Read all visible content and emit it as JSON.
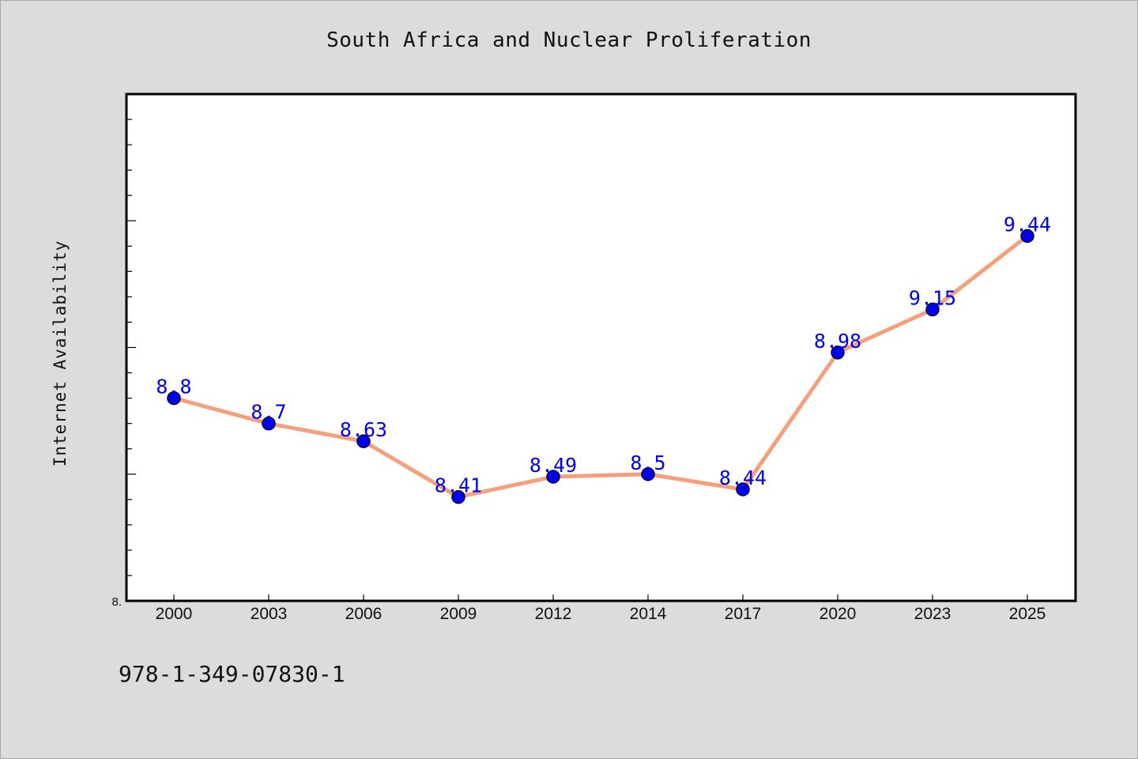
{
  "chart_data": {
    "type": "line",
    "title": "South Africa and Nuclear Proliferation",
    "xlabel": "",
    "ylabel": "Internet Availability",
    "categories": [
      "2000",
      "2003",
      "2006",
      "2009",
      "2012",
      "2014",
      "2017",
      "2020",
      "2023",
      "2025"
    ],
    "values": [
      8.8,
      8.7,
      8.63,
      8.41,
      8.49,
      8.5,
      8.44,
      8.98,
      9.15,
      9.44
    ],
    "data_labels": [
      "8.8",
      "8.7",
      "8.63",
      "8.41",
      "8.49",
      "8.5",
      "8.44",
      "8.98",
      "9.15",
      "9.44"
    ],
    "ylim": [
      8.0,
      10.0
    ],
    "y_tick_labels": [
      "8."
    ],
    "grid": false,
    "legend": "none",
    "colors": {
      "line": "#f4a07c",
      "marker_fill": "#0000ee",
      "marker_edge": "#000033",
      "data_label": "#0000ee",
      "plot_background": "#ffffff",
      "figure_background": "#dcdcdc"
    }
  },
  "footer": {
    "isbn": "978-1-349-07830-1"
  }
}
